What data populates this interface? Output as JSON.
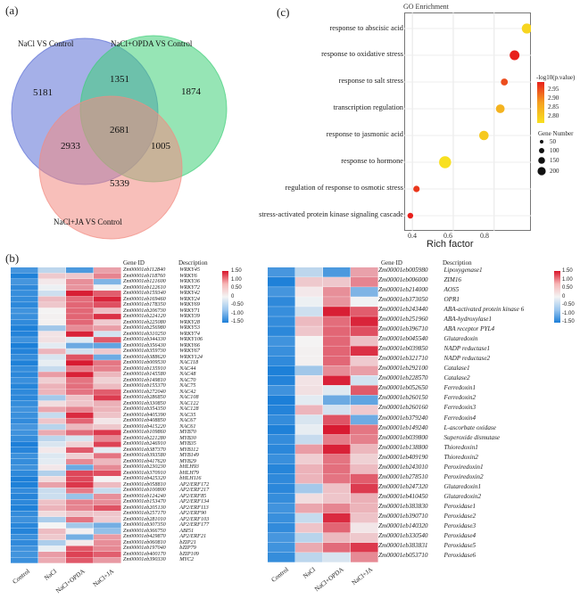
{
  "panel_a": {
    "label": "(a)",
    "sets": [
      "NaCl VS Control",
      "NaCl+OPDA VS Control",
      "NaCl+JA VS Control"
    ],
    "counts": {
      "only1": "5181",
      "only2": "1874",
      "only3": "5339",
      "n12": "1351",
      "n13": "2933",
      "n23": "1005",
      "n123": "2681"
    },
    "colors": [
      "#5b6fd6",
      "#3fcf79",
      "#f28b82"
    ]
  },
  "panel_b": {
    "label": "(b)",
    "gene_id_header": "Gene ID",
    "description_header": "Description",
    "columns": [
      "Control",
      "NaCl",
      "NaCl+OPDA",
      "NaCl+JA"
    ],
    "scale_labels": [
      "1.50",
      "1.00",
      "0.50",
      "0",
      "-0.50",
      "-1.00",
      "-1.50"
    ],
    "left": {
      "rows": [
        [
          "Zm00001eb112840",
          "WRKY45"
        ],
        [
          "Zm00001eb118760",
          "WRKY6"
        ],
        [
          "Zm00001eb121600",
          "WRKY36"
        ],
        [
          "Zm00001eb122610",
          "WRKY72"
        ],
        [
          "Zm00001eb159340",
          "WRKY42"
        ],
        [
          "Zm00001eb169460",
          "WRKY24"
        ],
        [
          "Zm00001eb178350",
          "WRKY69"
        ],
        [
          "Zm00001eb206730",
          "WRKY71"
        ],
        [
          "Zm00001eb224120",
          "WRKY39"
        ],
        [
          "Zm00001eb225080",
          "WRKY28"
        ],
        [
          "Zm00001eb256980",
          "WRKY53"
        ],
        [
          "Zm00001eb310250",
          "WRKY74"
        ],
        [
          "Zm00001eb344330",
          "WRKY106"
        ],
        [
          "Zm00001eb356430",
          "WRKY66"
        ],
        [
          "Zm00001eb359730",
          "WRKY67"
        ],
        [
          "Zm00001eb388620",
          "WRKY124"
        ],
        [
          "Zm00001eb009530",
          "NAC118"
        ],
        [
          "Zm00001eb135910",
          "NAC44"
        ],
        [
          "Zm00001eb145580",
          "NAC48"
        ],
        [
          "Zm00001eb149810",
          "NAC70"
        ],
        [
          "Zm00001eb155370",
          "NAC75"
        ],
        [
          "Zm00001eb272040",
          "NAC42"
        ],
        [
          "Zm00001eb286850",
          "NAC108"
        ],
        [
          "Zm00001eb330850",
          "NAC122"
        ],
        [
          "Zm00001eb354350",
          "NAC128"
        ],
        [
          "Zm00001eb405390",
          "NAC35"
        ],
        [
          "Zm00001eb408850",
          "NAC67"
        ],
        [
          "Zm00001eb415220",
          "NAC61"
        ],
        [
          "Zm00001eb109860",
          "MYB70"
        ],
        [
          "Zm00001eb221280",
          "MYB30"
        ],
        [
          "Zm00001eb246910",
          "MYB35"
        ],
        [
          "Zm00001eb387370",
          "MYB112"
        ],
        [
          "Zm00001eb393580",
          "MYB149"
        ],
        [
          "Zm00001eb417620",
          "MYB29"
        ],
        [
          "Zm00001eb230230",
          "bHLH93"
        ],
        [
          "Zm00001eb370910",
          "bHLH79"
        ],
        [
          "Zm00001eb425320",
          "bHLH116"
        ],
        [
          "Zm00001eb058810",
          "AP2/ERF172"
        ],
        [
          "Zm00001eb100800",
          "AP2/ERF217"
        ],
        [
          "Zm00001eb124240",
          "AP2/ERF85"
        ],
        [
          "Zm00001eb153470",
          "AP2/ERF134"
        ],
        [
          "Zm00001eb205130",
          "AP2/ERF113"
        ],
        [
          "Zm00001eb257170",
          "AP2/ERF90"
        ],
        [
          "Zm00001eb281010",
          "AP2/ERF103"
        ],
        [
          "Zm00001eb307350",
          "AP2/ERF177"
        ],
        [
          "Zm00001eb366750",
          "ABI51"
        ],
        [
          "Zm00001eb429870",
          "AP2/ERF21"
        ],
        [
          "Zm00001eb060810",
          "bZIP21"
        ],
        [
          "Zm00001eb197040",
          "bZIP79"
        ],
        [
          "Zm00001eb400170",
          "bZIP109"
        ],
        [
          "Zm00001eb390330",
          "MYC2"
        ]
      ]
    },
    "right": {
      "rows": [
        [
          "Zm00001eb005980",
          "Lipoxygenase1"
        ],
        [
          "Zm00001eb006000",
          "ZIM16"
        ],
        [
          "Zm00001eb214000",
          "AOS5"
        ],
        [
          "Zm00001eb373050",
          "OPR1"
        ],
        [
          "Zm00001eb243440",
          "ABA-activated protein kinase 6"
        ],
        [
          "Zm00001eb251960",
          "ABA-hydroxylase1"
        ],
        [
          "Zm00001eb396710",
          "ABA receptor PYL4"
        ],
        [
          "Zm00001eb045540",
          "Glutaredoxin"
        ],
        [
          "Zm00001eb039850",
          "NADP reductase1"
        ],
        [
          "Zm00001eb321710",
          "NADP reductase2"
        ],
        [
          "Zm00001eb292100",
          "Catalase1"
        ],
        [
          "Zm00001eb228570",
          "Catalase2"
        ],
        [
          "Zm00001eb052650",
          "Ferredoxin1"
        ],
        [
          "Zm00001eb260150",
          "Ferredoxin2"
        ],
        [
          "Zm00001eb260160",
          "Ferredoxin3"
        ],
        [
          "Zm00001eb379240",
          "Ferredoxin4"
        ],
        [
          "Zm00001eb149240",
          "L-ascorbate oxidase"
        ],
        [
          "Zm00001eb039800",
          "Superoxide dismutase"
        ],
        [
          "Zm00001eb138800",
          "Thioredoxin1"
        ],
        [
          "Zm00001eb409190",
          "Thioredoxin2"
        ],
        [
          "Zm00001eb243010",
          "Peroxiredoxin1"
        ],
        [
          "Zm00001eb278510",
          "Peroxiredoxin2"
        ],
        [
          "Zm00001eb247320",
          "Glutaredoxin1"
        ],
        [
          "Zm00001eb410450",
          "Glutaredoxin2"
        ],
        [
          "Zm00001eb383830",
          "Peroxidase1"
        ],
        [
          "Zm00001eb390710",
          "Peroxidase2"
        ],
        [
          "Zm00001eb140320",
          "Peroxidase3"
        ],
        [
          "Zm00001eb330540",
          "Peroxidase4"
        ],
        [
          "Zm00001eb383831",
          "Peroxidase5"
        ],
        [
          "Zm00001eb053710",
          "Peroxidase6"
        ]
      ]
    }
  },
  "panel_c": {
    "label": "(c)",
    "chart_data": {
      "type": "scatter",
      "title": "GO Enrichment",
      "xlabel": "Rich factor",
      "ylabel": "",
      "xlim": [
        0.36,
        0.98
      ],
      "xticks": [
        "0.4",
        "0.6",
        "0.8"
      ],
      "terms": [
        "response to abscisic acid",
        "response to oxidative stress",
        "response to salt stress",
        "transcription regulation",
        "response to jasmonic acid",
        "response to hormone",
        "regulation of response to osmotic stress",
        "stress-activated protein kinase signaling cascade"
      ],
      "rich_factor": [
        0.96,
        0.9,
        0.85,
        0.83,
        0.75,
        0.56,
        0.42,
        0.39
      ],
      "gene_number": [
        120,
        110,
        40,
        80,
        100,
        190,
        30,
        20
      ],
      "neg_log10_p": [
        2.81,
        2.97,
        2.93,
        2.84,
        2.82,
        2.8,
        2.95,
        2.97
      ],
      "color_legend_title": "-log10(p.value)",
      "color_ticks": [
        "2.95",
        "2.90",
        "2.85",
        "2.80"
      ],
      "size_legend_title": "Gene Number",
      "size_ticks": [
        "50",
        "100",
        "150",
        "200"
      ]
    }
  }
}
